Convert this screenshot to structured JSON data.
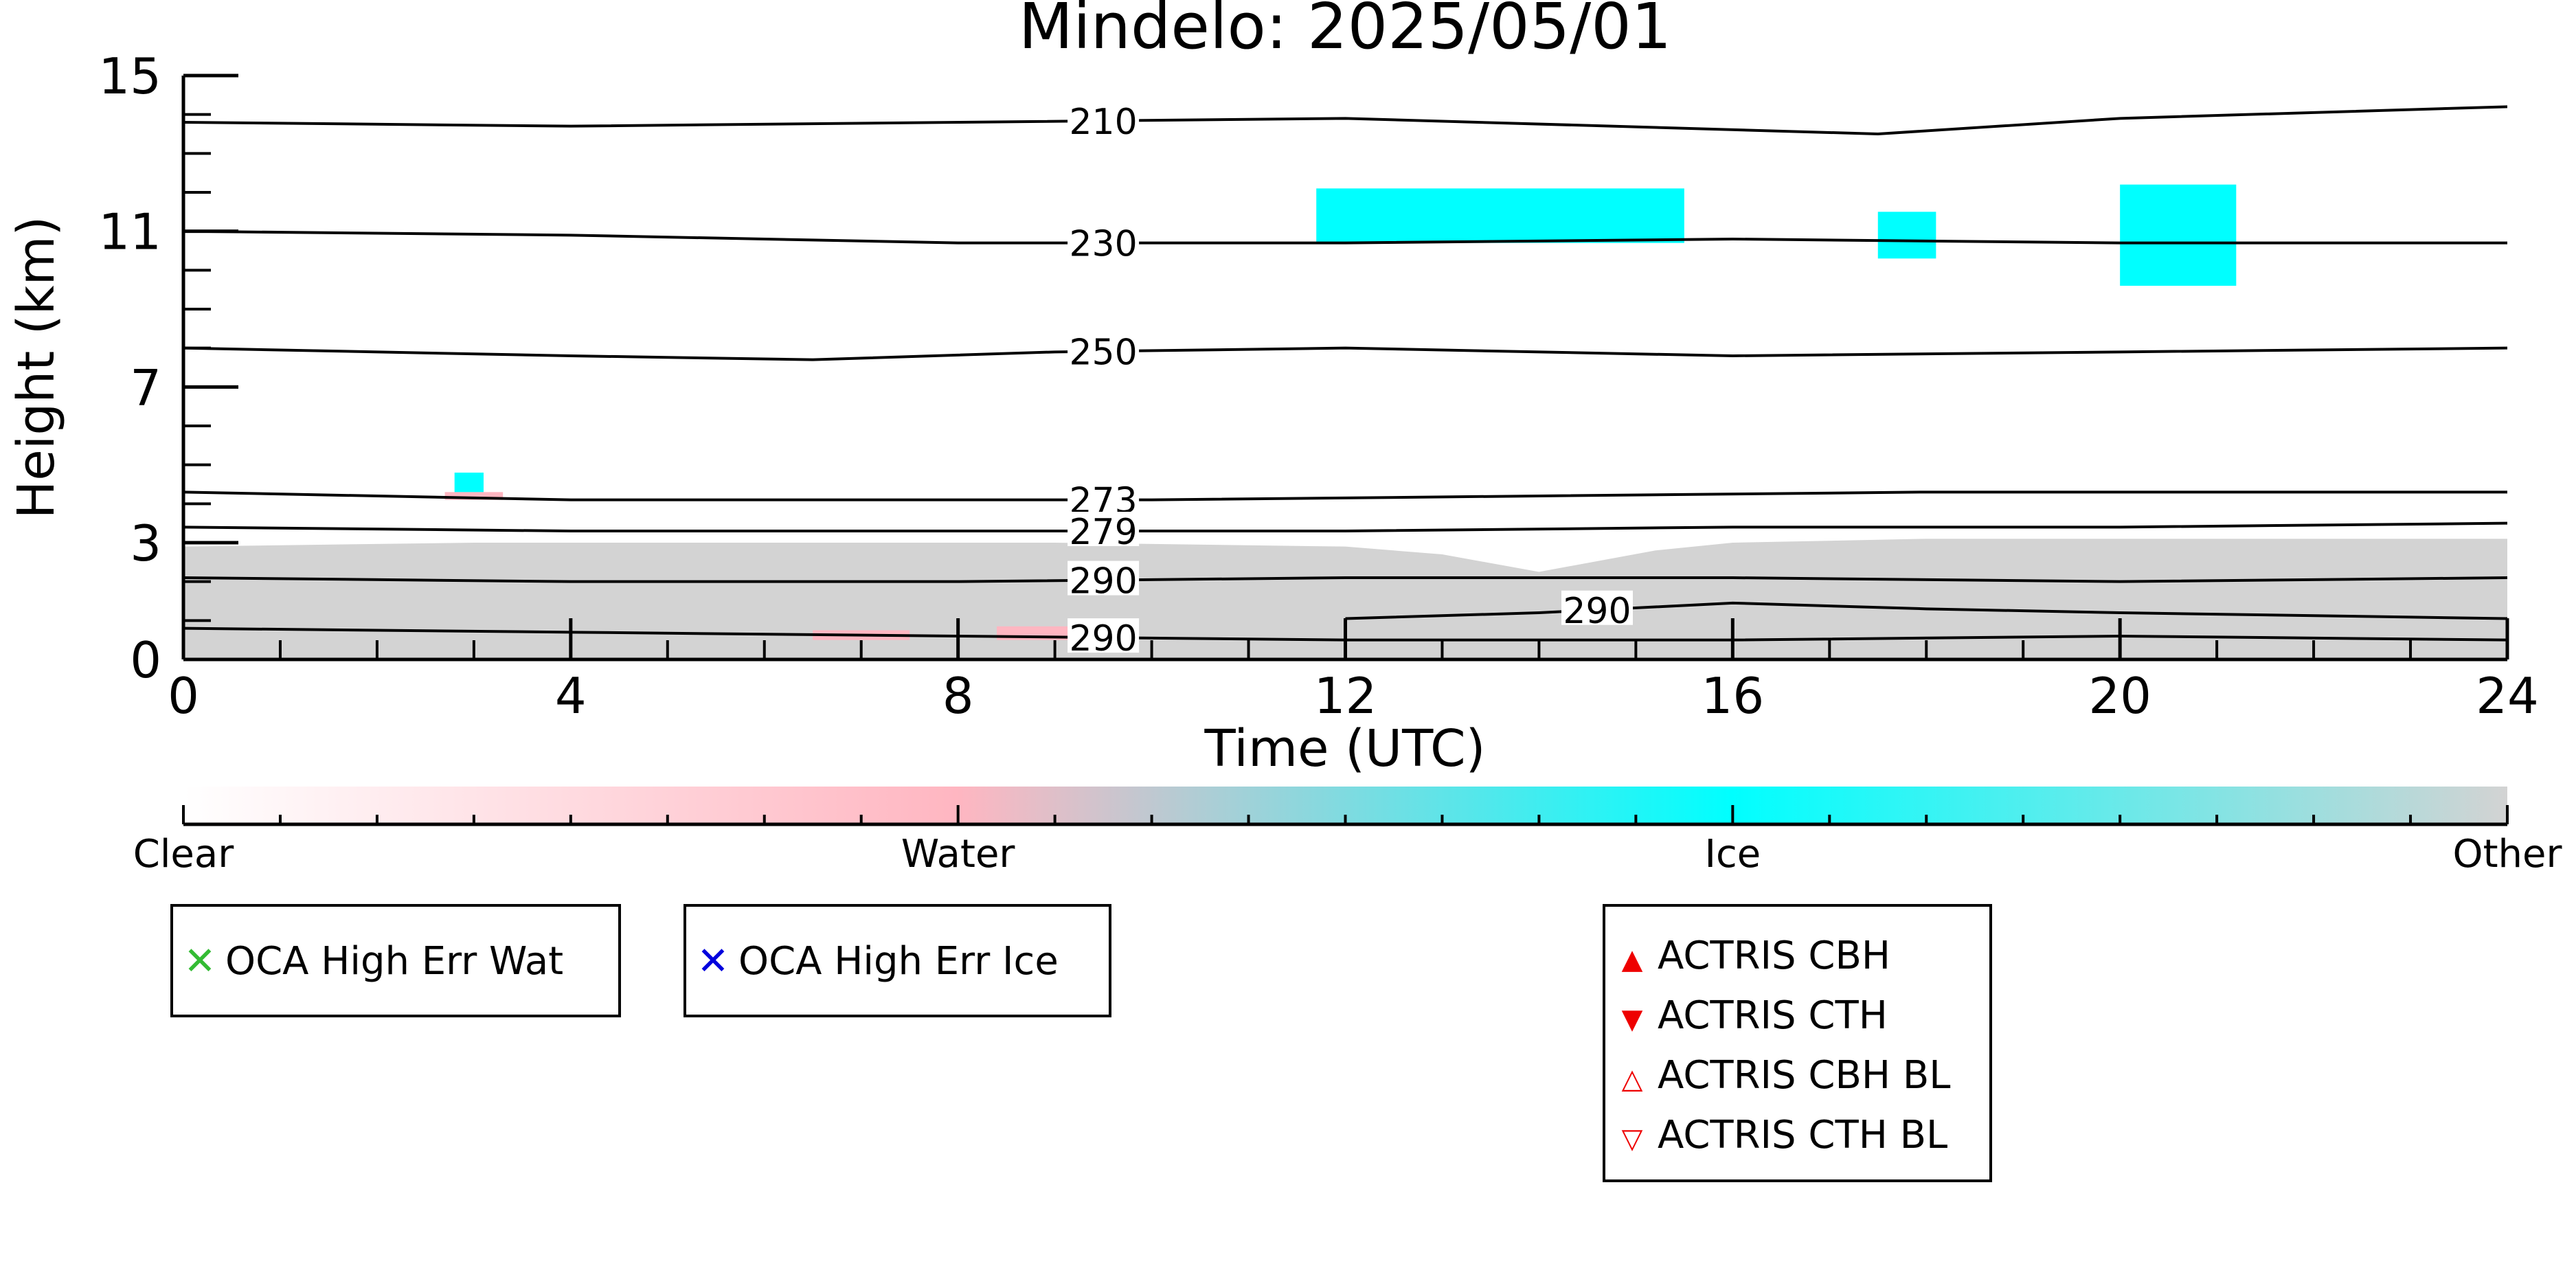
{
  "chart_data": {
    "type": "heatmap",
    "title": "Mindelo: 2025/05/01",
    "xlabel": "Time (UTC)",
    "ylabel": "Height (km)",
    "xlim": [
      0,
      24
    ],
    "ylim": [
      0,
      15
    ],
    "x_ticks": [
      "0",
      "4",
      "8",
      "12",
      "16",
      "20",
      "24"
    ],
    "y_ticks": [
      "0",
      "3",
      "7",
      "11",
      "15"
    ],
    "y_tick_values": [
      0,
      3,
      7,
      11,
      15
    ],
    "grid": false,
    "colorbar": {
      "labels": [
        "Clear",
        "Water",
        "Ice",
        "Other"
      ],
      "colors": {
        "clear": "#ffffff",
        "water": "#ffb6c1",
        "ice": "#00ffff",
        "other": "#d3d3d3"
      }
    },
    "temperature_contours": [
      {
        "label": "210",
        "label_x": 9.5,
        "points": [
          [
            0,
            13.8
          ],
          [
            4,
            13.7
          ],
          [
            8,
            13.8
          ],
          [
            12,
            13.9
          ],
          [
            17.5,
            13.5
          ],
          [
            20,
            13.9
          ],
          [
            24,
            14.2
          ]
        ]
      },
      {
        "label": "230",
        "label_x": 9.5,
        "points": [
          [
            0,
            11.0
          ],
          [
            4,
            10.9
          ],
          [
            8,
            10.7
          ],
          [
            12,
            10.7
          ],
          [
            16,
            10.8
          ],
          [
            20,
            10.7
          ],
          [
            24,
            10.7
          ]
        ]
      },
      {
        "label": "250",
        "label_x": 9.5,
        "points": [
          [
            0,
            8.0
          ],
          [
            4,
            7.8
          ],
          [
            6.5,
            7.7
          ],
          [
            9,
            7.9
          ],
          [
            12,
            8.0
          ],
          [
            16,
            7.8
          ],
          [
            20,
            7.9
          ],
          [
            24,
            8.0
          ]
        ]
      },
      {
        "label": "273",
        "label_x": 9.5,
        "points": [
          [
            0,
            4.3
          ],
          [
            4,
            4.1
          ],
          [
            8,
            4.1
          ],
          [
            10,
            4.1
          ],
          [
            14,
            4.2
          ],
          [
            18,
            4.3
          ],
          [
            24,
            4.3
          ]
        ]
      },
      {
        "label": "279",
        "label_x": 9.5,
        "points": [
          [
            0,
            3.4
          ],
          [
            4,
            3.3
          ],
          [
            8,
            3.3
          ],
          [
            12,
            3.3
          ],
          [
            16,
            3.4
          ],
          [
            20,
            3.4
          ],
          [
            24,
            3.5
          ]
        ]
      },
      {
        "label": "290",
        "label_x": 9.5,
        "points": [
          [
            0,
            2.1
          ],
          [
            4,
            2.0
          ],
          [
            8,
            2.0
          ],
          [
            12,
            2.1
          ],
          [
            16,
            2.1
          ],
          [
            20,
            2.0
          ],
          [
            24,
            2.1
          ]
        ]
      },
      {
        "label": "290",
        "label_x": 14.6,
        "points": [
          [
            12,
            1.05
          ],
          [
            14,
            1.2
          ],
          [
            16,
            1.45
          ],
          [
            18,
            1.3
          ],
          [
            20,
            1.2
          ],
          [
            24,
            1.05
          ]
        ]
      },
      {
        "label": "290",
        "label_x": 9.5,
        "points": [
          [
            0,
            0.8
          ],
          [
            4,
            0.7
          ],
          [
            8,
            0.6
          ],
          [
            12,
            0.5
          ],
          [
            16,
            0.5
          ],
          [
            20,
            0.6
          ],
          [
            24,
            0.5
          ]
        ]
      }
    ],
    "cloud_regions": [
      {
        "class": "Other",
        "points": [
          [
            0,
            0
          ],
          [
            0,
            2.9
          ],
          [
            3,
            3.0
          ],
          [
            6,
            3.0
          ],
          [
            9,
            3.0
          ],
          [
            12,
            2.9
          ],
          [
            13,
            2.7
          ],
          [
            14,
            2.25
          ],
          [
            15.2,
            2.8
          ],
          [
            16,
            3.0
          ],
          [
            18,
            3.1
          ],
          [
            21,
            3.1
          ],
          [
            24,
            3.1
          ],
          [
            24,
            0
          ]
        ]
      },
      {
        "class": "Ice",
        "x_range": [
          11.7,
          15.5
        ],
        "y_range": [
          10.7,
          12.1
        ]
      },
      {
        "class": "Ice",
        "x_range": [
          17.5,
          18.1
        ],
        "y_range": [
          10.3,
          11.5
        ]
      },
      {
        "class": "Ice",
        "x_range": [
          20.0,
          21.2
        ],
        "y_range": [
          9.6,
          12.2
        ]
      },
      {
        "class": "Ice",
        "x_range": [
          2.8,
          3.1
        ],
        "y_range": [
          4.2,
          4.8
        ]
      },
      {
        "class": "Water",
        "x_range": [
          2.7,
          3.3
        ],
        "y_range": [
          4.1,
          4.3
        ]
      },
      {
        "class": "Water",
        "x_range": [
          6.5,
          7.5
        ],
        "y_range": [
          0.5,
          0.75
        ]
      },
      {
        "class": "Water",
        "x_range": [
          8.4,
          9.4
        ],
        "y_range": [
          0.5,
          0.85
        ]
      }
    ]
  },
  "legends": {
    "oca_wat": "OCA High Err Wat",
    "oca_ice": "OCA High Err Ice",
    "actris_cbh": "ACTRIS CBH",
    "actris_cth": "ACTRIS CTH",
    "actris_cbh_bl": "ACTRIS CBH BL",
    "actris_cth_bl": "ACTRIS CTH BL",
    "colors": {
      "wat": "#33bb33",
      "ice": "#0000dd",
      "actris": "#ee0000"
    }
  }
}
